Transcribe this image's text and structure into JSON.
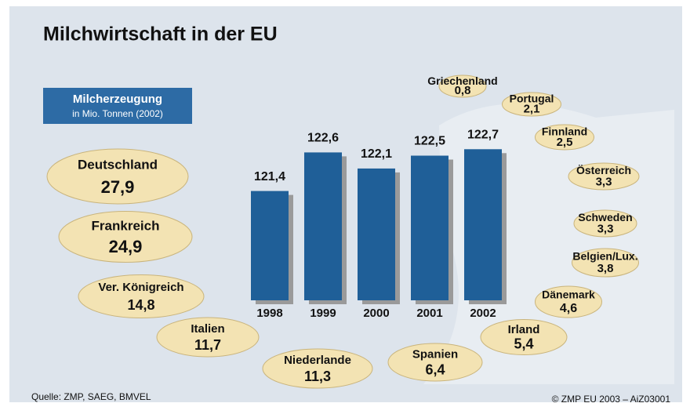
{
  "chart_data": [
    {
      "type": "bar",
      "title": "Milchwirtschaft in der EU",
      "subtitle": "Milcherzeugung",
      "axis_label": "in Mio. Tonnen (2002)",
      "categories": [
        "1998",
        "1999",
        "2000",
        "2001",
        "2002"
      ],
      "values": [
        121.4,
        122.6,
        122.1,
        122.5,
        122.7
      ],
      "value_labels": [
        "121,4",
        "122,6",
        "122,1",
        "122,5",
        "122,7"
      ],
      "color": "#1f5f98",
      "ylim": [
        118,
        123
      ]
    },
    {
      "type": "label-cloud",
      "categories": [
        "Deutschland",
        "Frankreich",
        "Ver. Königreich",
        "Italien",
        "Niederlande",
        "Spanien",
        "Irland",
        "Dänemark",
        "Belgien/Lux.",
        "Schweden",
        "Österreich",
        "Finnland",
        "Portugal",
        "Griechenland"
      ],
      "values": [
        27.9,
        24.9,
        14.8,
        11.7,
        11.3,
        6.4,
        5.4,
        4.6,
        3.8,
        3.3,
        3.3,
        2.5,
        2.1,
        0.8
      ],
      "value_labels": [
        "27,9",
        "24,9",
        "14,8",
        "11,7",
        "11,3",
        "6,4",
        "5,4",
        "4,6",
        "3,8",
        "3,3",
        "3,3",
        "2,5",
        "2,1",
        "0,8"
      ],
      "color": "#f3e3b3"
    }
  ],
  "footer": {
    "source": "Quelle: ZMP, SAEG, BMVEL",
    "copyright": "© ZMP EU 2003 – AiZ03001"
  }
}
